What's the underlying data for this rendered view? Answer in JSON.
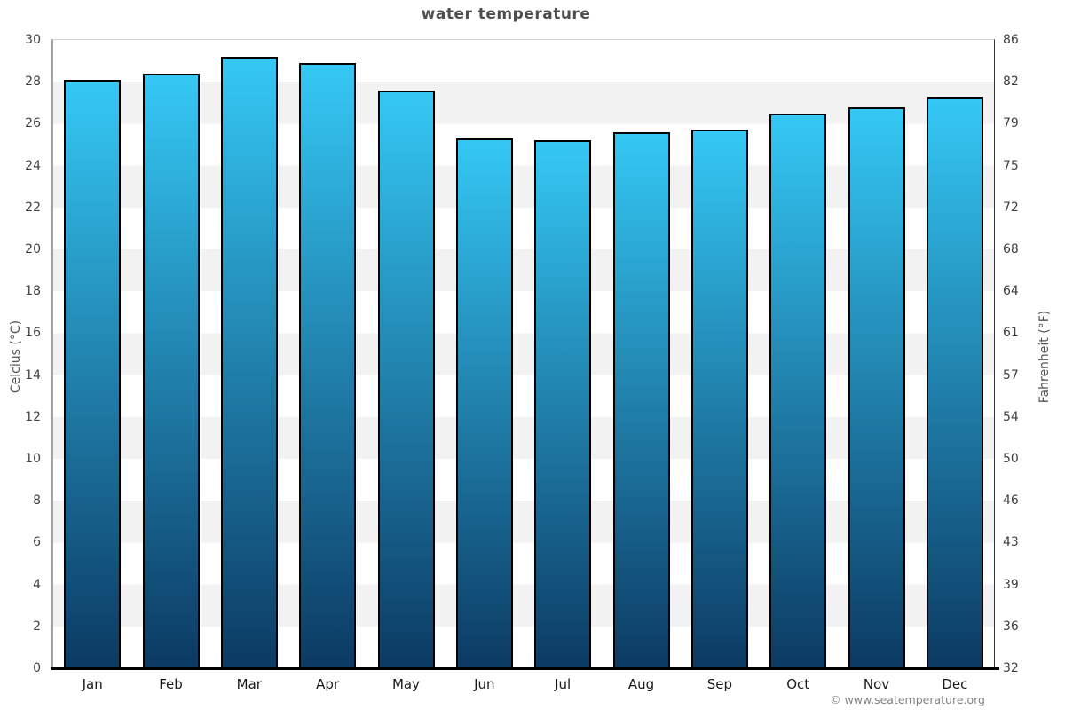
{
  "chart_data": {
    "type": "bar",
    "title": "water temperature",
    "categories": [
      "Jan",
      "Feb",
      "Mar",
      "Apr",
      "May",
      "Jun",
      "Jul",
      "Aug",
      "Sep",
      "Oct",
      "Nov",
      "Dec"
    ],
    "values": [
      28.1,
      28.4,
      29.2,
      28.9,
      27.6,
      25.3,
      25.2,
      25.6,
      25.7,
      26.5,
      26.8,
      27.3
    ],
    "xlabel": "",
    "ylabel_left": "Celcius (°C)",
    "ylabel_right": "Fahrenheit (°F)",
    "ylim": [
      0,
      30
    ],
    "yticks_celsius": [
      0,
      2,
      4,
      6,
      8,
      10,
      12,
      14,
      16,
      18,
      20,
      22,
      24,
      26,
      28,
      30
    ],
    "yticks_fahrenheit": [
      "32",
      "36",
      "39",
      "43",
      "46",
      "50",
      "54",
      "57",
      "61",
      "64",
      "68",
      "72",
      "75",
      "79",
      "82",
      "86"
    ],
    "grid": "horizontal-stripes",
    "legend": "none"
  },
  "colors": {
    "bar_top": "#35c8f5",
    "bar_bottom": "#0b3a63",
    "bar_border": "#000000",
    "stripe_light": "#ffffff",
    "stripe_gray": "#f2f2f2"
  },
  "footer": {
    "credit": "© www.seatemperature.org"
  }
}
